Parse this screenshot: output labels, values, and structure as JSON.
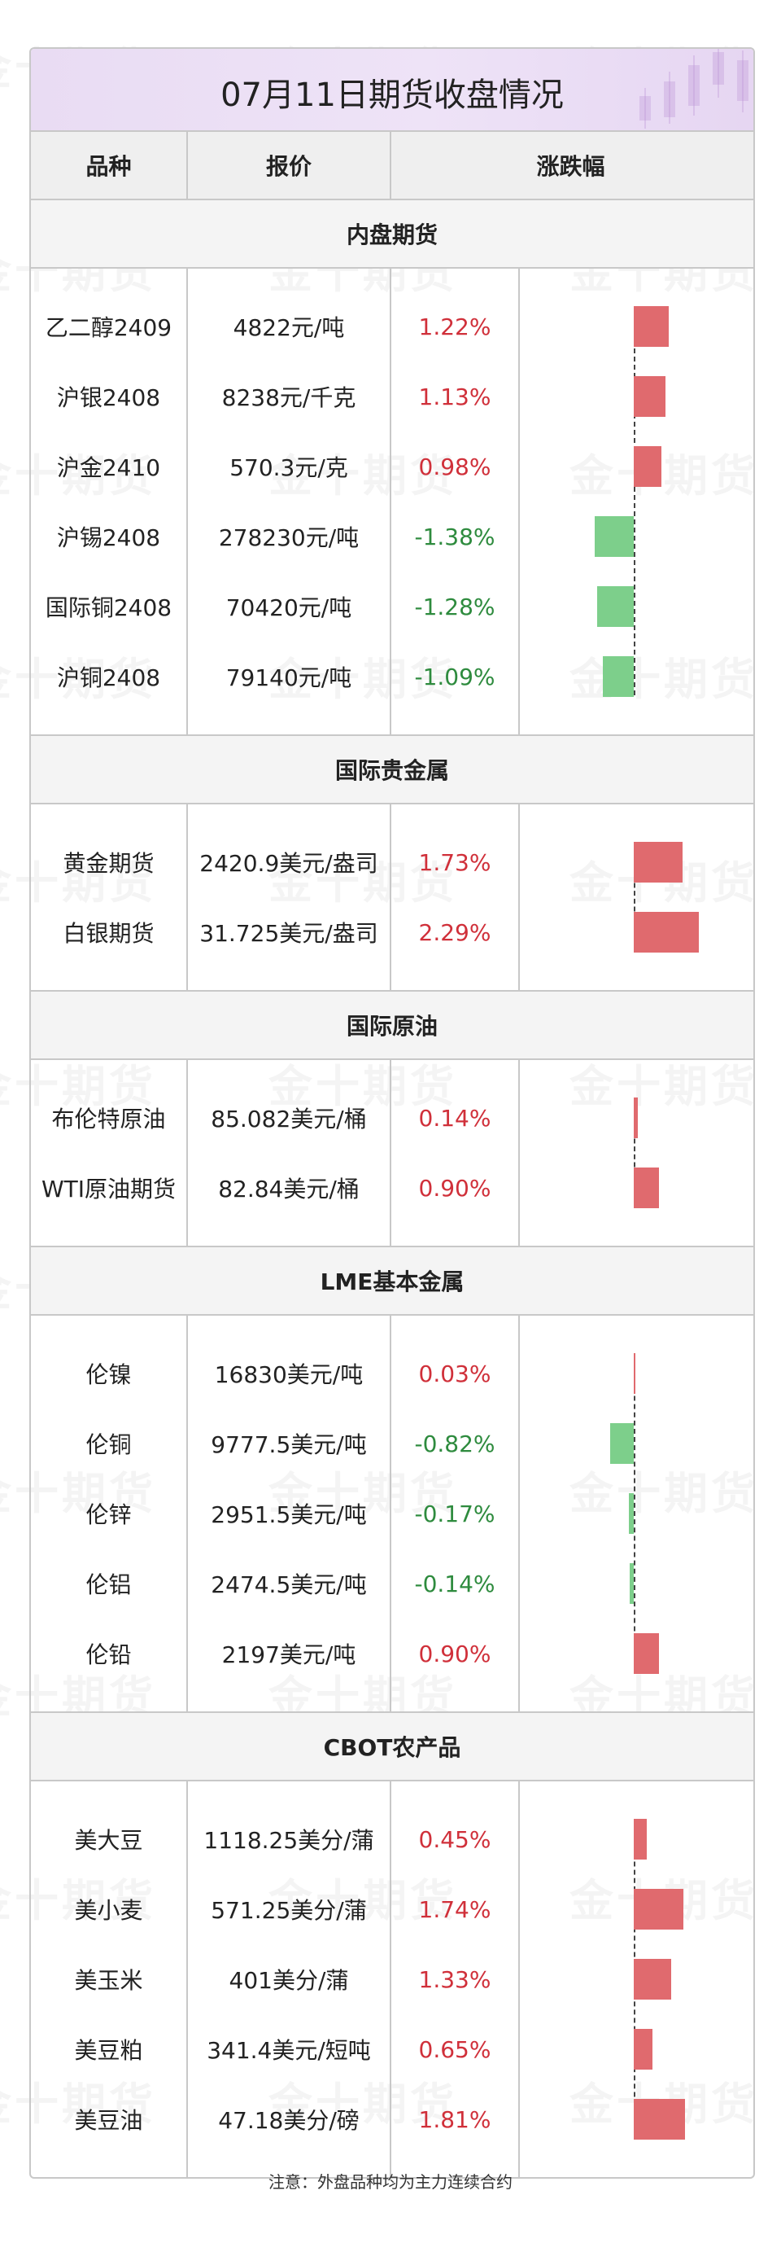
{
  "title": "07月11日期货收盘情况",
  "headers": {
    "variety": "品种",
    "price": "报价",
    "change": "涨跌幅"
  },
  "watermark": "金十期货",
  "colors": {
    "up": "#d0303a",
    "down": "#2e8b3e",
    "bar_up": "#e06a6e",
    "bar_down": "#7dcf8b",
    "title_bg": "#eadff5"
  },
  "sections": [
    {
      "name": "内盘期货",
      "rows": [
        {
          "name": "乙二醇2409",
          "price": "4822元/吨",
          "change": "1.22%",
          "value": 1.22
        },
        {
          "name": "沪银2408",
          "price": "8238元/千克",
          "change": "1.13%",
          "value": 1.13
        },
        {
          "name": "沪金2410",
          "price": "570.3元/克",
          "change": "0.98%",
          "value": 0.98
        },
        {
          "name": "沪锡2408",
          "price": "278230元/吨",
          "change": "-1.38%",
          "value": -1.38
        },
        {
          "name": "国际铜2408",
          "price": "70420元/吨",
          "change": "-1.28%",
          "value": -1.28
        },
        {
          "name": "沪铜2408",
          "price": "79140元/吨",
          "change": "-1.09%",
          "value": -1.09
        }
      ]
    },
    {
      "name": "国际贵金属",
      "rows": [
        {
          "name": "黄金期货",
          "price": "2420.9美元/盎司",
          "change": "1.73%",
          "value": 1.73
        },
        {
          "name": "白银期货",
          "price": "31.725美元/盎司",
          "change": "2.29%",
          "value": 2.29
        }
      ]
    },
    {
      "name": "国际原油",
      "rows": [
        {
          "name": "布伦特原油",
          "price": "85.082美元/桶",
          "change": "0.14%",
          "value": 0.14
        },
        {
          "name": "WTI原油期货",
          "price": "82.84美元/桶",
          "change": "0.90%",
          "value": 0.9
        }
      ]
    },
    {
      "name": "LME基本金属",
      "rows": [
        {
          "name": "伦镍",
          "price": "16830美元/吨",
          "change": "0.03%",
          "value": 0.03
        },
        {
          "name": "伦铜",
          "price": "9777.5美元/吨",
          "change": "-0.82%",
          "value": -0.82
        },
        {
          "name": "伦锌",
          "price": "2951.5美元/吨",
          "change": "-0.17%",
          "value": -0.17
        },
        {
          "name": "伦铝",
          "price": "2474.5美元/吨",
          "change": "-0.14%",
          "value": -0.14
        },
        {
          "name": "伦铅",
          "price": "2197美元/吨",
          "change": "0.90%",
          "value": 0.9
        }
      ]
    },
    {
      "name": "CBOT农产品",
      "rows": [
        {
          "name": "美大豆",
          "price": "1118.25美分/蒲",
          "change": "0.45%",
          "value": 0.45
        },
        {
          "name": "美小麦",
          "price": "571.25美分/蒲",
          "change": "1.74%",
          "value": 1.74
        },
        {
          "name": "美玉米",
          "price": "401美分/蒲",
          "change": "1.33%",
          "value": 1.33
        },
        {
          "name": "美豆粕",
          "price": "341.4美元/短吨",
          "change": "0.65%",
          "value": 0.65
        },
        {
          "name": "美豆油",
          "price": "47.18美分/磅",
          "change": "1.81%",
          "value": 1.81
        }
      ]
    }
  ],
  "footnote": "注意：外盘品种均为主力连续合约"
}
